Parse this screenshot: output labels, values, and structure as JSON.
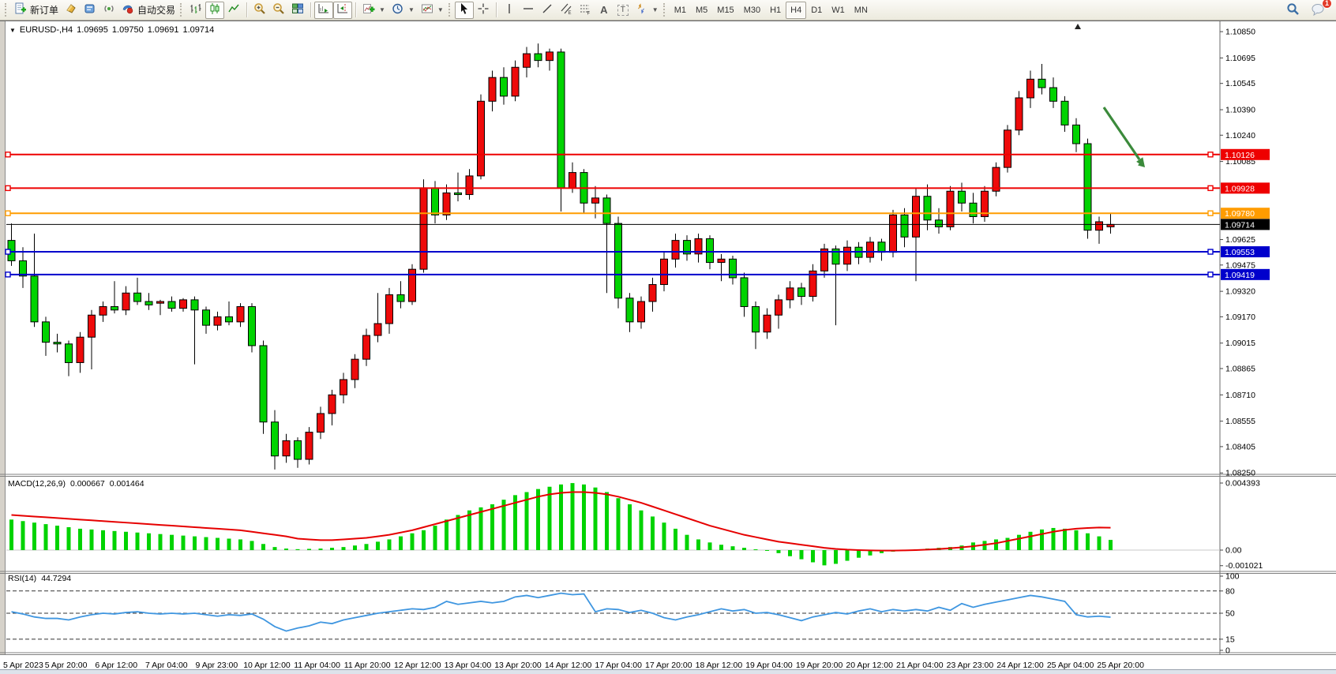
{
  "toolbar": {
    "new_order_label": "新订单",
    "autotrading_label": "自动交易",
    "timeframes": [
      "M1",
      "M5",
      "M15",
      "M30",
      "H1",
      "H4",
      "D1",
      "W1",
      "MN"
    ],
    "selected_timeframe": "H4",
    "notification_count": "1",
    "text_tool_label": "A",
    "label_tool_label": "T"
  },
  "chart": {
    "symbol_period": "EURUSD-,H4",
    "open": "1.09695",
    "high": "1.09750",
    "low": "1.09691",
    "close": "1.09714"
  },
  "indicators": {
    "macd": {
      "label": "MACD(12,26,9)",
      "value_main": "0.000667",
      "value_signal": "0.001464",
      "axis_labels": [
        "0.004393",
        "0.00",
        "-0.001021"
      ]
    },
    "rsi": {
      "label": "RSI(14)",
      "value": "44.7294",
      "axis_labels": [
        "100",
        "80",
        "50",
        "15",
        "0"
      ]
    }
  },
  "price_axis": {
    "ticks": [
      "1.10850",
      "1.10695",
      "1.10545",
      "1.10390",
      "1.10240",
      "1.10085",
      "1.09625",
      "1.09475",
      "1.09320",
      "1.09170",
      "1.09015",
      "1.08865",
      "1.08710",
      "1.08555",
      "1.08405",
      "1.08250"
    ]
  },
  "time_axis": {
    "labels": [
      "5 Apr 2023",
      "5 Apr 20:00",
      "6 Apr 12:00",
      "7 Apr 04:00",
      "9 Apr 23:00",
      "10 Apr 12:00",
      "11 Apr 04:00",
      "11 Apr 20:00",
      "12 Apr 12:00",
      "13 Apr 04:00",
      "13 Apr 20:00",
      "14 Apr 12:00",
      "17 Apr 04:00",
      "17 Apr 20:00",
      "18 Apr 12:00",
      "19 Apr 04:00",
      "19 Apr 20:00",
      "20 Apr 12:00",
      "21 Apr 04:00",
      "23 Apr 23:00",
      "24 Apr 12:00",
      "25 Apr 04:00",
      "25 Apr 20:00"
    ]
  },
  "hlines": [
    {
      "price": 1.10126,
      "label": "1.10126",
      "color": "#ee0000",
      "width": 2,
      "handles": true
    },
    {
      "price": 1.09928,
      "label": "1.09928",
      "color": "#ee0000",
      "width": 2,
      "handles": true
    },
    {
      "price": 1.0978,
      "label": "1.09780",
      "color": "#ff9c00",
      "width": 2,
      "handles": true
    },
    {
      "price": 1.09714,
      "label": "1.09714",
      "color": "#000000",
      "width": 1,
      "handles": false
    },
    {
      "price": 1.09553,
      "label": "1.09553",
      "color": "#0000cc",
      "width": 2,
      "handles": true
    },
    {
      "price": 1.09419,
      "label": "1.09419",
      "color": "#0000cc",
      "width": 2,
      "handles": true
    }
  ],
  "annotations": {
    "arrow": {
      "type": "trend-arrow",
      "direction": "down-right",
      "color": "#3b8a3b"
    }
  },
  "chart_data": {
    "type": "candlestick",
    "symbol": "EURUSD-",
    "timeframe": "H4",
    "title": "EURUSD-,H4 1.09695 1.09750 1.09691 1.09714",
    "up_color": "#ee0a0a",
    "down_color": "#00d300",
    "price_axis_range": [
      1.0825,
      1.1085
    ],
    "candles": [
      [
        1.0962,
        1.0972,
        1.0947,
        1.095
      ],
      [
        1.095,
        1.0958,
        1.0934,
        1.0941
      ],
      [
        1.0941,
        1.0966,
        1.0911,
        1.0914
      ],
      [
        1.0914,
        1.0917,
        1.0894,
        1.0902
      ],
      [
        1.0902,
        1.0907,
        1.0896,
        1.0901
      ],
      [
        1.0901,
        1.0903,
        1.0882,
        1.089
      ],
      [
        1.089,
        1.0908,
        1.0884,
        1.0905
      ],
      [
        1.0905,
        1.0921,
        1.0886,
        1.0918
      ],
      [
        1.0918,
        1.0926,
        1.0914,
        1.0923
      ],
      [
        1.0923,
        1.0938,
        1.0919,
        1.0921
      ],
      [
        1.0921,
        1.0935,
        1.0918,
        1.0931
      ],
      [
        1.0931,
        1.094,
        1.0924,
        1.0926
      ],
      [
        1.0926,
        1.0931,
        1.0921,
        1.0924
      ],
      [
        1.0925,
        1.0927,
        1.0918,
        1.0926
      ],
      [
        1.0926,
        1.0929,
        1.092,
        1.0922
      ],
      [
        1.0922,
        1.0928,
        1.092,
        1.0927
      ],
      [
        1.0927,
        1.0929,
        1.0889,
        1.0921
      ],
      [
        1.0921,
        1.0923,
        1.0907,
        1.0912
      ],
      [
        1.0912,
        1.092,
        1.0909,
        1.0917
      ],
      [
        1.0917,
        1.0926,
        1.0912,
        1.0914
      ],
      [
        1.0914,
        1.0925,
        1.0911,
        1.0923
      ],
      [
        1.0923,
        1.0925,
        1.0896,
        1.09
      ],
      [
        1.09,
        1.0903,
        1.0848,
        1.0855
      ],
      [
        1.0855,
        1.0862,
        1.0827,
        1.0835
      ],
      [
        1.0835,
        1.0848,
        1.0831,
        1.0844
      ],
      [
        1.0844,
        1.0846,
        1.0828,
        1.0833
      ],
      [
        1.0833,
        1.0852,
        1.083,
        1.0849
      ],
      [
        1.0849,
        1.0864,
        1.0845,
        1.086
      ],
      [
        1.086,
        1.0874,
        1.0853,
        1.0871
      ],
      [
        1.0871,
        1.0884,
        1.0866,
        1.088
      ],
      [
        1.088,
        1.0895,
        1.0875,
        1.0892
      ],
      [
        1.0892,
        1.091,
        1.0888,
        1.0906
      ],
      [
        1.0906,
        1.0931,
        1.0902,
        1.0913
      ],
      [
        1.0913,
        1.0934,
        1.0907,
        1.093
      ],
      [
        1.093,
        1.0938,
        1.0922,
        1.0926
      ],
      [
        1.0926,
        1.0948,
        1.0924,
        1.0945
      ],
      [
        1.0945,
        1.0998,
        1.0943,
        1.0993
      ],
      [
        1.0993,
        1.0997,
        1.0972,
        1.0977
      ],
      [
        1.0977,
        1.0995,
        1.0974,
        1.099
      ],
      [
        1.099,
        1.1002,
        1.0985,
        1.0989
      ],
      [
        1.0989,
        1.1004,
        1.0986,
        1.1
      ],
      [
        1.1,
        1.1048,
        1.0998,
        1.1044
      ],
      [
        1.1044,
        1.1062,
        1.1038,
        1.1058
      ],
      [
        1.1058,
        1.1064,
        1.1042,
        1.1047
      ],
      [
        1.1047,
        1.1068,
        1.1044,
        1.1064
      ],
      [
        1.1064,
        1.1076,
        1.1058,
        1.1072
      ],
      [
        1.1072,
        1.1078,
        1.1064,
        1.1068
      ],
      [
        1.1068,
        1.1075,
        1.1062,
        1.1073
      ],
      [
        1.1073,
        1.1075,
        1.0979,
        1.0993
      ],
      [
        1.0993,
        1.1008,
        1.099,
        1.1002
      ],
      [
        1.1002,
        1.1004,
        1.0978,
        1.0984
      ],
      [
        1.0984,
        1.0994,
        1.0975,
        1.0987
      ],
      [
        1.0987,
        1.0989,
        1.0931,
        1.0972
      ],
      [
        1.0972,
        1.0976,
        1.0922,
        1.0928
      ],
      [
        1.0928,
        1.0931,
        1.0908,
        1.0914
      ],
      [
        1.0914,
        1.0929,
        1.091,
        1.0926
      ],
      [
        1.0926,
        1.094,
        1.092,
        1.0936
      ],
      [
        1.0936,
        1.0955,
        1.0932,
        1.0951
      ],
      [
        1.0951,
        1.0966,
        1.0946,
        1.0962
      ],
      [
        1.0962,
        1.0965,
        1.095,
        1.0954
      ],
      [
        1.0954,
        1.0966,
        1.0949,
        1.0963
      ],
      [
        1.0963,
        1.0965,
        1.0945,
        1.0949
      ],
      [
        1.0949,
        1.0954,
        1.0938,
        1.0951
      ],
      [
        1.0951,
        1.0953,
        1.0936,
        1.094
      ],
      [
        1.094,
        1.0943,
        1.0917,
        1.0923
      ],
      [
        1.0923,
        1.0926,
        1.0898,
        1.0908
      ],
      [
        1.0908,
        1.0922,
        1.0904,
        1.0918
      ],
      [
        1.0918,
        1.093,
        1.091,
        1.0927
      ],
      [
        1.0927,
        1.0938,
        1.0922,
        1.0934
      ],
      [
        1.0934,
        1.0937,
        1.0924,
        1.0929
      ],
      [
        1.0929,
        1.0948,
        1.0926,
        1.0944
      ],
      [
        1.0944,
        1.096,
        1.094,
        1.0957
      ],
      [
        1.0957,
        1.0959,
        1.0912,
        1.0948
      ],
      [
        1.0948,
        1.0962,
        1.0944,
        1.0958
      ],
      [
        1.0958,
        1.0961,
        1.0948,
        1.0952
      ],
      [
        1.0952,
        1.0964,
        1.0949,
        1.0961
      ],
      [
        1.0961,
        1.0963,
        1.095,
        1.0955
      ],
      [
        1.0955,
        1.098,
        1.0952,
        1.0977
      ],
      [
        1.0977,
        1.0981,
        1.0958,
        1.0964
      ],
      [
        1.0964,
        1.0993,
        1.0938,
        1.0988
      ],
      [
        1.0988,
        1.0995,
        1.0968,
        1.0974
      ],
      [
        1.0974,
        1.0981,
        1.0966,
        1.097
      ],
      [
        1.097,
        1.0994,
        1.0968,
        1.0991
      ],
      [
        1.0991,
        1.0996,
        1.0979,
        1.0984
      ],
      [
        1.0984,
        1.099,
        1.0972,
        1.0976
      ],
      [
        1.0976,
        1.0994,
        1.0973,
        1.0991
      ],
      [
        1.0991,
        1.1008,
        1.0988,
        1.1005
      ],
      [
        1.1005,
        1.103,
        1.1002,
        1.1027
      ],
      [
        1.1027,
        1.105,
        1.1024,
        1.1046
      ],
      [
        1.1046,
        1.1062,
        1.104,
        1.1057
      ],
      [
        1.1057,
        1.1066,
        1.1048,
        1.1052
      ],
      [
        1.1052,
        1.1058,
        1.104,
        1.1044
      ],
      [
        1.1044,
        1.1047,
        1.1026,
        1.103
      ],
      [
        1.103,
        1.1034,
        1.1014,
        1.1019
      ],
      [
        1.1019,
        1.1022,
        1.0963,
        1.0968
      ],
      [
        1.0968,
        1.0976,
        1.096,
        1.0973
      ],
      [
        1.097,
        1.0978,
        1.0966,
        1.09714
      ]
    ],
    "macd": {
      "unit": 0.0001,
      "ymax": 0.004393,
      "ymin": -0.001021,
      "color_hist": "#00d300",
      "color_signal": "#e60000",
      "histogram": [
        20,
        19,
        18,
        17,
        16,
        15,
        14,
        13.5,
        13,
        12.5,
        12,
        11.5,
        11,
        10.5,
        10,
        9.5,
        9,
        8.5,
        8,
        7.5,
        7,
        6,
        4,
        2,
        1,
        0.6,
        0.8,
        1,
        1.5,
        2,
        3,
        4,
        5.5,
        7,
        9,
        11,
        13,
        16,
        20,
        23,
        26,
        28,
        30,
        33,
        36,
        38,
        40,
        41.5,
        43,
        43.9,
        43,
        41,
        38,
        34,
        30,
        26,
        22,
        18,
        14,
        10,
        7,
        5,
        3.5,
        2.5,
        1.5,
        0.5,
        -0.5,
        -2,
        -4,
        -6,
        -8,
        -10,
        -9,
        -7,
        -5,
        -3.5,
        -2,
        -1,
        -0.5,
        0.5,
        1,
        1.5,
        2,
        3,
        5,
        6,
        7,
        8,
        10,
        12,
        13.5,
        14.5,
        14,
        13,
        11,
        9,
        6.67
      ],
      "signal": [
        23,
        22.5,
        22,
        21.5,
        21,
        20.5,
        20,
        19.5,
        19,
        18.5,
        18,
        17.5,
        17,
        16.5,
        16,
        15.5,
        15,
        14.5,
        14,
        13.5,
        13,
        12,
        11,
        10,
        9,
        7.5,
        7,
        6.5,
        6.5,
        7,
        7.5,
        8,
        9,
        10,
        11.5,
        13,
        15,
        17,
        19,
        21,
        23,
        25,
        27,
        29,
        31,
        33,
        35,
        36.5,
        37.5,
        38,
        38,
        37.5,
        36.5,
        35,
        33,
        31,
        28.5,
        26,
        23.5,
        21,
        18.5,
        16,
        14,
        12,
        10,
        8.5,
        7,
        5.5,
        4.5,
        3.5,
        2.5,
        1.5,
        0.8,
        0.3,
        0,
        -0.2,
        -0.3,
        -0.3,
        -0.2,
        0,
        0.3,
        0.7,
        1.2,
        1.8,
        2.5,
        3.5,
        4.5,
        6,
        7.5,
        9,
        10.5,
        12,
        13.2,
        14,
        14.5,
        14.8,
        14.64
      ]
    },
    "rsi": {
      "period": 14,
      "color": "#3f96e0",
      "levels": [
        80,
        50,
        15
      ],
      "last": 44.7294,
      "values": [
        52,
        49,
        45,
        43,
        43,
        41,
        45,
        48,
        50,
        49,
        51,
        52,
        50,
        49,
        50,
        49,
        50,
        48,
        46,
        48,
        47,
        49,
        42,
        32,
        26,
        30,
        33,
        38,
        36,
        41,
        44,
        47,
        50,
        52,
        54,
        56,
        55,
        58,
        66,
        62,
        64,
        66,
        64,
        66,
        72,
        74,
        71,
        74,
        77,
        75,
        76,
        52,
        56,
        55,
        51,
        54,
        50,
        44,
        41,
        45,
        48,
        52,
        56,
        53,
        55,
        50,
        51,
        48,
        44,
        40,
        45,
        48,
        51,
        49,
        53,
        56,
        52,
        55,
        53,
        55,
        53,
        58,
        54,
        63,
        58,
        62,
        65,
        68,
        71,
        74,
        72,
        69,
        66,
        48,
        45,
        46,
        44.73
      ]
    }
  }
}
